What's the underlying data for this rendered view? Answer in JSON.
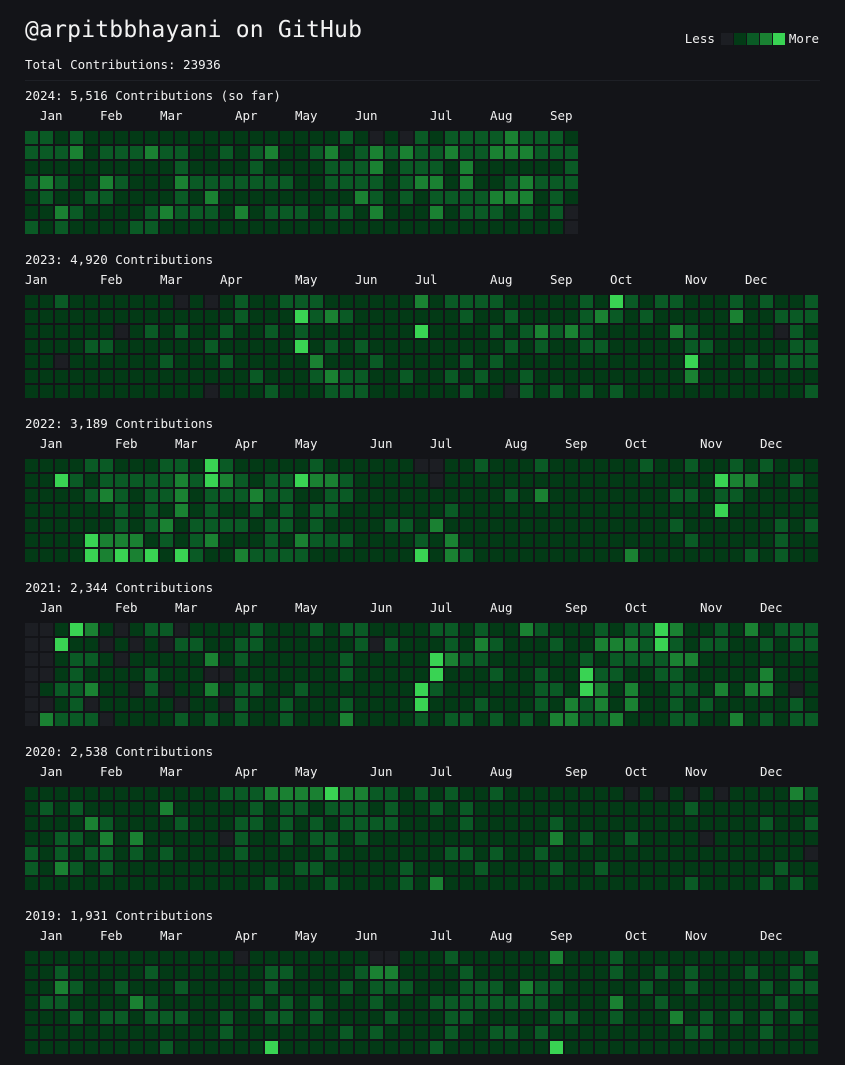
{
  "header": {
    "title": "@arpitbbhayani on GitHub",
    "total": "Total Contributions: 23936"
  },
  "legend": {
    "less": "Less",
    "more": "More"
  },
  "colors": {
    "background": "#131418",
    "levels": [
      "#1c1e23",
      "#033a16",
      "#0a5a25",
      "#1a8132",
      "#39d353"
    ]
  },
  "chart_data": [
    {
      "type": "heatmap",
      "title": "2024: 5,516 Contributions (so far)",
      "year": 2024,
      "months": [
        [
          "Jan",
          1
        ],
        [
          "Feb",
          5
        ],
        [
          "Mar",
          9
        ],
        [
          "Apr",
          14
        ],
        [
          "May",
          18
        ],
        [
          "Jun",
          22
        ],
        [
          "Jul",
          27
        ],
        [
          "Aug",
          31
        ],
        [
          "Sep",
          35
        ]
      ],
      "weeks": 37,
      "levels": "2212111111111111111112101021222232221|2223122232211212311231232322322333222|1111111111211112111122231222131111112|2321132111322222221122221233131123222|1211221111213111111111321212222333121|1132111123222131222122131113122212120|2121111221111111111111111111111111110"
    },
    {
      "type": "heatmap",
      "title": "2023: 4,920 Contributions",
      "year": 2023,
      "months": [
        [
          "Jan",
          0
        ],
        [
          "Feb",
          5
        ],
        [
          "Mar",
          9
        ],
        [
          "Apr",
          13
        ],
        [
          "May",
          18
        ],
        [
          "Jun",
          22
        ],
        [
          "Jul",
          26
        ],
        [
          "Aug",
          31
        ],
        [
          "Sep",
          35
        ],
        [
          "Oct",
          39
        ],
        [
          "Nov",
          44
        ],
        [
          "Dec",
          48
        ]
      ],
      "weeks": 53,
      "levels": "11211111110101211222111111312222111112142122111212112|11111111111111211142321111111211211112321211111311222|11111101212112112121111111411112123232111113211111021|11112211111121111141212111111111212112211111221111122|11011111121112111113111211111212111111111111411121222|11111111111111121112322112112121121111111111311111111|11111111111101112111222111111211021212121111111111112"
    },
    {
      "type": "heatmap",
      "title": "2022: 3,189 Contributions",
      "year": 2022,
      "months": [
        [
          "Jan",
          1
        ],
        [
          "Feb",
          6
        ],
        [
          "Mar",
          10
        ],
        [
          "Apr",
          14
        ],
        [
          "May",
          18
        ],
        [
          "Jun",
          23
        ],
        [
          "Jul",
          27
        ],
        [
          "Aug",
          32
        ],
        [
          "Sep",
          36
        ],
        [
          "Oct",
          40
        ],
        [
          "Nov",
          45
        ],
        [
          "Dec",
          49
        ]
      ],
      "weeks": 53,
      "levels": "11112211122142111112111111001121112111111211211212111|11421222223243212243321111101111111111111111114331121|11112321223122232211221111111111213111111112212211111|11111121213121121212211111112111111111111111114111111|11111121231222212212111122131111111111111112111111212|11114333121231112132221111213111111111111111211111211|11114343414211322221111111413211111111113111111121211"
    },
    {
      "type": "heatmap",
      "title": "2021: 2,344 Contributions",
      "year": 2021,
      "months": [
        [
          "Jan",
          1
        ],
        [
          "Feb",
          6
        ],
        [
          "Mar",
          10
        ],
        [
          "Apr",
          14
        ],
        [
          "May",
          18
        ],
        [
          "Jun",
          23
        ],
        [
          "Jul",
          27
        ],
        [
          "Aug",
          31
        ],
        [
          "Sep",
          36
        ],
        [
          "Oct",
          40
        ],
        [
          "Nov",
          45
        ],
        [
          "Dec",
          49
        ]
      ],
      "weeks": 53,
      "levels": "00143101220111121112122111122121132111212243112131222|00411010102211221111112021112132111211333242122112122|00122101111131211111121111143221111112122223311111111|00121111211100111111121111141112112114221122111113111|01223110201131221121111111421111112214313112213133101|00120111110110211211121111411121112132313112121111121|03222011112121211211131111212212121332231112211312122"
    },
    {
      "type": "heatmap",
      "title": "2020: 2,538 Contributions",
      "year": 2020,
      "months": [
        [
          "Jan",
          1
        ],
        [
          "Feb",
          5
        ],
        [
          "Mar",
          9
        ],
        [
          "Apr",
          14
        ],
        [
          "May",
          18
        ],
        [
          "Jun",
          23
        ],
        [
          "Jul",
          27
        ],
        [
          "Aug",
          31
        ],
        [
          "Sep",
          36
        ],
        [
          "Oct",
          40
        ],
        [
          "Nov",
          44
        ],
        [
          "Dec",
          49
        ]
      ],
      "weeks": 53,
      "levels": "11111111111112223333433221212112111111110101010111132|12121111131111121221222121121211111111111111211111111|11113211112111221212122221111211111211111111111112112|11221313111110211212212111111111111312112111101111111|21212212121111211111211111112212112111111111111111110|21321211111111111122111112111121111211211111111111211|11111111111111112111211112131111111111111111211112121"
    },
    {
      "type": "heatmap",
      "title": "2019: 1,931 Contributions",
      "year": 2019,
      "months": [
        [
          "Jan",
          1
        ],
        [
          "Feb",
          5
        ],
        [
          "Mar",
          9
        ],
        [
          "Apr",
          14
        ],
        [
          "May",
          18
        ],
        [
          "Jun",
          22
        ],
        [
          "Jul",
          27
        ],
        [
          "Aug",
          31
        ],
        [
          "Sep",
          35
        ],
        [
          "Oct",
          40
        ],
        [
          "Nov",
          44
        ],
        [
          "Dec",
          49
        ]
      ],
      "weeks": 53,
      "levels": "11111111111111011111111001112111111311121111111111112|11211111211111112211112331111211111111121121211121121|11321121112111112111121222111222132211111211211112122|12211113211111121212111211122222222111131121111111211|11121221222112112212111121112211111221121113121212121|11111111111112111111121211112112212111111111221112111|11111111121111114111111111121111111411111111111111111"
    }
  ]
}
